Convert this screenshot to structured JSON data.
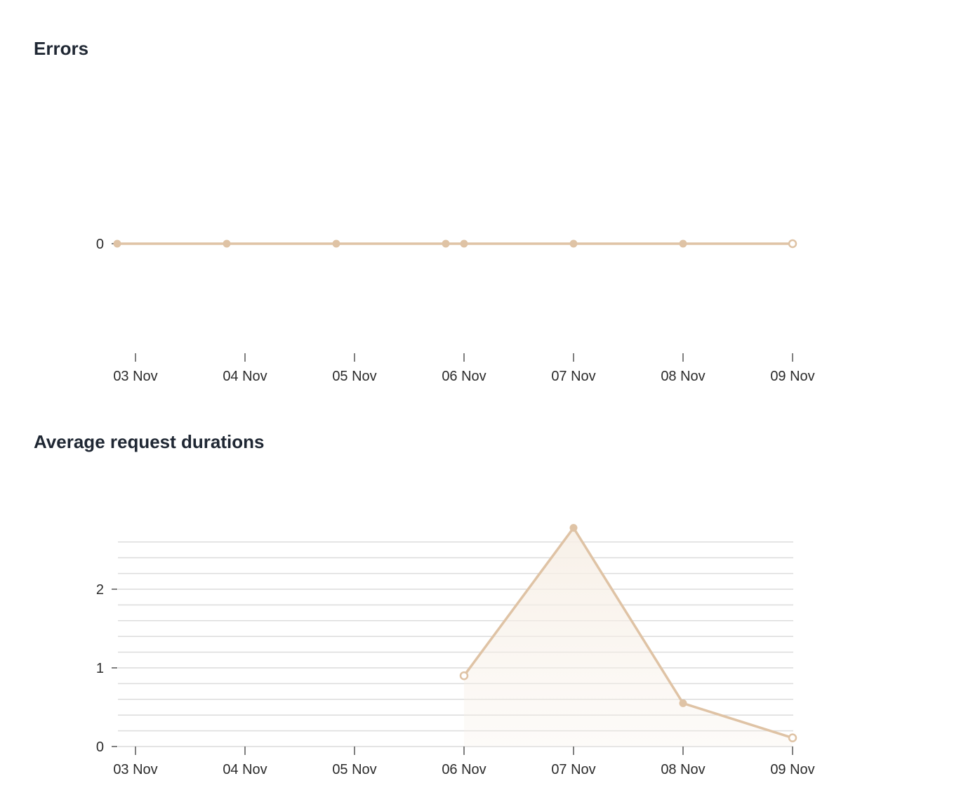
{
  "sections": {
    "errors_title": "Errors",
    "durations_title": "Average request durations"
  },
  "colors": {
    "line": "#dfc3a5",
    "area": "#f7efe6",
    "grid": "#dcdcdc",
    "text": "#1f2733"
  },
  "chart_data": [
    {
      "type": "line",
      "title": "Errors",
      "x_ticks": [
        "03 Nov",
        "04 Nov",
        "05 Nov",
        "06 Nov",
        "07 Nov",
        "08 Nov",
        "09 Nov"
      ],
      "y_ticks": [
        "0"
      ],
      "grid": false,
      "x": [
        "2023-11-02T20:00",
        "2023-11-03T20:00",
        "2023-11-04T20:00",
        "2023-11-05T20:00",
        "2023-11-06T00:00",
        "2023-11-07T00:00",
        "2023-11-08T00:00",
        "2023-11-09T00:00"
      ],
      "values": [
        0,
        0,
        0,
        0,
        0,
        0,
        0,
        0
      ]
    },
    {
      "type": "area",
      "title": "Average request durations",
      "x_ticks": [
        "03 Nov",
        "04 Nov",
        "05 Nov",
        "06 Nov",
        "07 Nov",
        "08 Nov",
        "09 Nov"
      ],
      "y_ticks": [
        "0",
        "1",
        "2"
      ],
      "ylim": [
        0,
        2.8
      ],
      "grid": true,
      "x": [
        "2023-11-06T00:00",
        "2023-11-07T00:00",
        "2023-11-08T00:00",
        "2023-11-09T00:00"
      ],
      "values": [
        0.9,
        2.78,
        0.55,
        0.11
      ]
    }
  ]
}
